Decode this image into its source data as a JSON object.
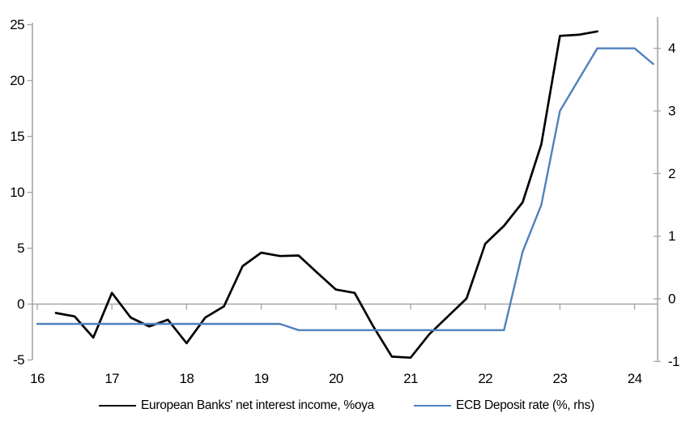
{
  "chart_data": {
    "type": "line",
    "title": "",
    "legend_position": "bottom",
    "grid": "zero-line-only",
    "x_axis": {
      "tick_labels": [
        16,
        17,
        18,
        19,
        20,
        21,
        22,
        23,
        24
      ],
      "range": [
        16,
        24.32
      ]
    },
    "left_axis": {
      "ticks": [
        -5,
        0,
        5,
        10,
        15,
        20,
        25
      ],
      "range": [
        -5,
        25
      ]
    },
    "right_axis": {
      "ticks": [
        -1,
        0,
        1,
        2,
        3,
        4
      ],
      "range": [
        -1,
        4.5
      ]
    },
    "series": [
      {
        "name": "European Banks' net interest income, %oya",
        "axis": "left",
        "color": "#000000",
        "x": [
          16.25,
          16.5,
          16.75,
          17,
          17.25,
          17.5,
          17.75,
          18,
          18.25,
          18.5,
          18.75,
          19,
          19.25,
          19.5,
          19.75,
          20,
          20.25,
          20.5,
          20.75,
          21,
          21.25,
          21.5,
          21.75,
          22,
          22.25,
          22.5,
          22.75,
          23,
          23.25,
          23.5
        ],
        "values": [
          -0.8,
          -1.1,
          -3.0,
          1.0,
          -1.2,
          -2.0,
          -1.4,
          -3.5,
          -1.2,
          -0.2,
          3.4,
          4.6,
          4.3,
          4.35,
          2.8,
          1.3,
          1.0,
          -2.0,
          -4.7,
          -4.8,
          -2.7,
          -1.1,
          0.5,
          5.4,
          7.0,
          9.1,
          14.3,
          24.0,
          24.1,
          24.4
        ]
      },
      {
        "name": "ECB Deposit rate (%, rhs)",
        "axis": "right",
        "color": "#4f81bd",
        "x": [
          16,
          16.25,
          16.5,
          16.75,
          17,
          17.25,
          17.5,
          17.75,
          18,
          18.25,
          18.5,
          18.75,
          19,
          19.25,
          19.5,
          19.75,
          20,
          20.25,
          20.5,
          20.75,
          21,
          21.25,
          21.5,
          21.75,
          22,
          22.25,
          22.5,
          22.75,
          23,
          23.25,
          23.5,
          23.75,
          24,
          24.25
        ],
        "values": [
          -0.4,
          -0.4,
          -0.4,
          -0.4,
          -0.4,
          -0.4,
          -0.4,
          -0.4,
          -0.4,
          -0.4,
          -0.4,
          -0.4,
          -0.4,
          -0.4,
          -0.5,
          -0.5,
          -0.5,
          -0.5,
          -0.5,
          -0.5,
          -0.5,
          -0.5,
          -0.5,
          -0.5,
          -0.5,
          -0.5,
          0.75,
          1.5,
          3.0,
          3.5,
          4.0,
          4.0,
          4.0,
          3.75
        ]
      }
    ]
  },
  "colors": {
    "axis_line": "#a6a6a6",
    "text": "#000000",
    "background": "#ffffff",
    "series_1": "#000000",
    "series_2": "#4f81bd"
  }
}
